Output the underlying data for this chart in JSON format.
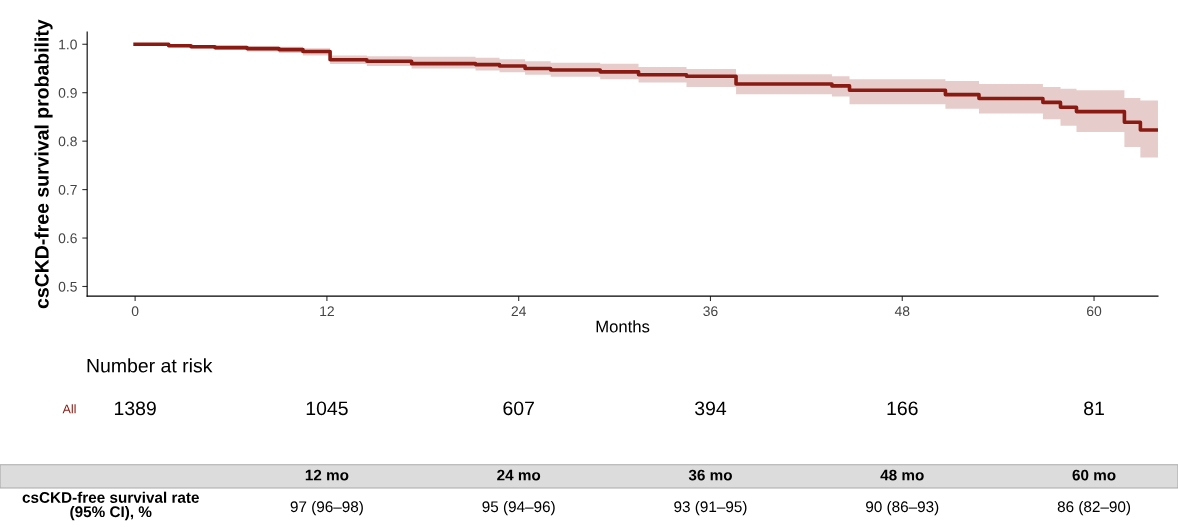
{
  "chart_data": {
    "type": "step",
    "ylabel": "csCKD-free survival probability",
    "xlabel": "Months",
    "xlim": [
      -3,
      64
    ],
    "xticks": [
      0,
      12,
      24,
      36,
      48,
      60
    ],
    "ylim": [
      0.48,
      1.025
    ],
    "yticks": [
      0.5,
      0.6,
      0.7,
      0.8,
      0.9,
      {
        "value": 1,
        "label": "1.0"
      }
    ],
    "grid": false,
    "legend": false,
    "series": [
      {
        "color": "#8b1a12",
        "x": [
          0,
          2.1,
          3.5,
          5,
          7,
          9,
          10.5,
          12.2,
          14.5,
          17.3,
          21.3,
          22.8,
          24.4,
          26,
          29.1,
          31.5,
          34.5,
          37.6,
          43.6,
          44.7,
          50.7,
          52.8,
          56.8,
          57.9,
          58.9,
          61.9,
          62.9,
          64
        ],
        "values": [
          1.0,
          0.997,
          0.995,
          0.993,
          0.991,
          0.989,
          0.985,
          0.968,
          0.965,
          0.96,
          0.958,
          0.955,
          0.95,
          0.947,
          0.943,
          0.937,
          0.934,
          0.918,
          0.914,
          0.905,
          0.896,
          0.888,
          0.88,
          0.87,
          0.861,
          0.839,
          0.823,
          0.823
        ],
        "lower": [
          1.0,
          0.994,
          0.991,
          0.988,
          0.985,
          0.982,
          0.977,
          0.959,
          0.955,
          0.95,
          0.946,
          0.942,
          0.937,
          0.933,
          0.928,
          0.921,
          0.912,
          0.897,
          0.892,
          0.876,
          0.867,
          0.857,
          0.845,
          0.832,
          0.819,
          0.788,
          0.766,
          0.766
        ],
        "upper": [
          1.0,
          0.999,
          0.998,
          0.997,
          0.996,
          0.995,
          0.992,
          0.977,
          0.975,
          0.974,
          0.972,
          0.969,
          0.965,
          0.962,
          0.96,
          0.953,
          0.949,
          0.938,
          0.934,
          0.928,
          0.924,
          0.918,
          0.912,
          0.908,
          0.905,
          0.889,
          0.884,
          0.884
        ]
      }
    ],
    "annotations": [
      "Number at risk",
      "All",
      "csCKD-free survival rate\n(95% CI), %",
      "1389",
      "1045",
      "607",
      "394",
      "166",
      "81",
      "12 mo",
      "24 mo",
      "36 mo",
      "48 mo",
      "60 mo",
      "97 (96–98)",
      "95 (94–96)",
      "93 (91–95)",
      "90 (86–93)",
      "86 (82–90)"
    ]
  }
}
